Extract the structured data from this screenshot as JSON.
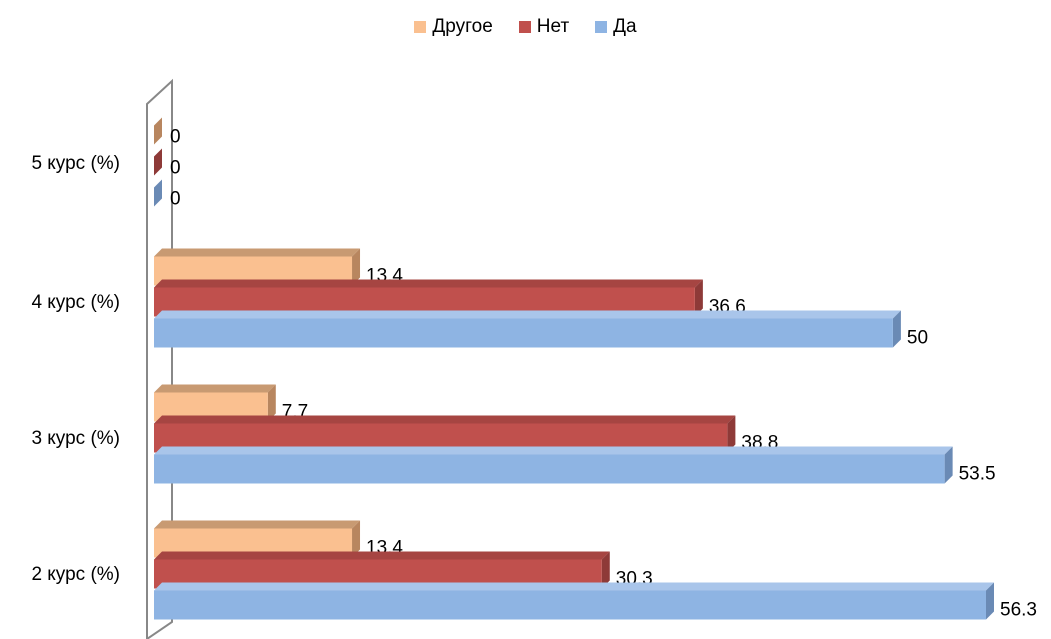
{
  "chart_data": {
    "type": "bar",
    "orientation": "horizontal",
    "style": "3d-clustered",
    "categories": [
      "2 курс (%)",
      "3 курс (%)",
      "4 курс (%)",
      "5 курс (%)"
    ],
    "series": [
      {
        "name": "Да",
        "values": [
          56.3,
          53.5,
          50,
          0
        ],
        "color": "#8EB4E3",
        "side": "#6A8AB5",
        "top": "#A9C5EA"
      },
      {
        "name": "Нет",
        "values": [
          30.3,
          38.8,
          36.6,
          0
        ],
        "color": "#C0504D",
        "side": "#8E3A38",
        "top": "#A64542"
      },
      {
        "name": "Другое",
        "values": [
          13.4,
          7.7,
          13.4,
          0
        ],
        "color": "#FAC090",
        "side": "#B8865F",
        "top": "#C89A72"
      }
    ],
    "legend_order": [
      "Другое",
      "Нет",
      "Да"
    ],
    "legend_position": "top",
    "xlim": [
      0,
      56.3
    ],
    "grid": false,
    "data_labels": true
  }
}
